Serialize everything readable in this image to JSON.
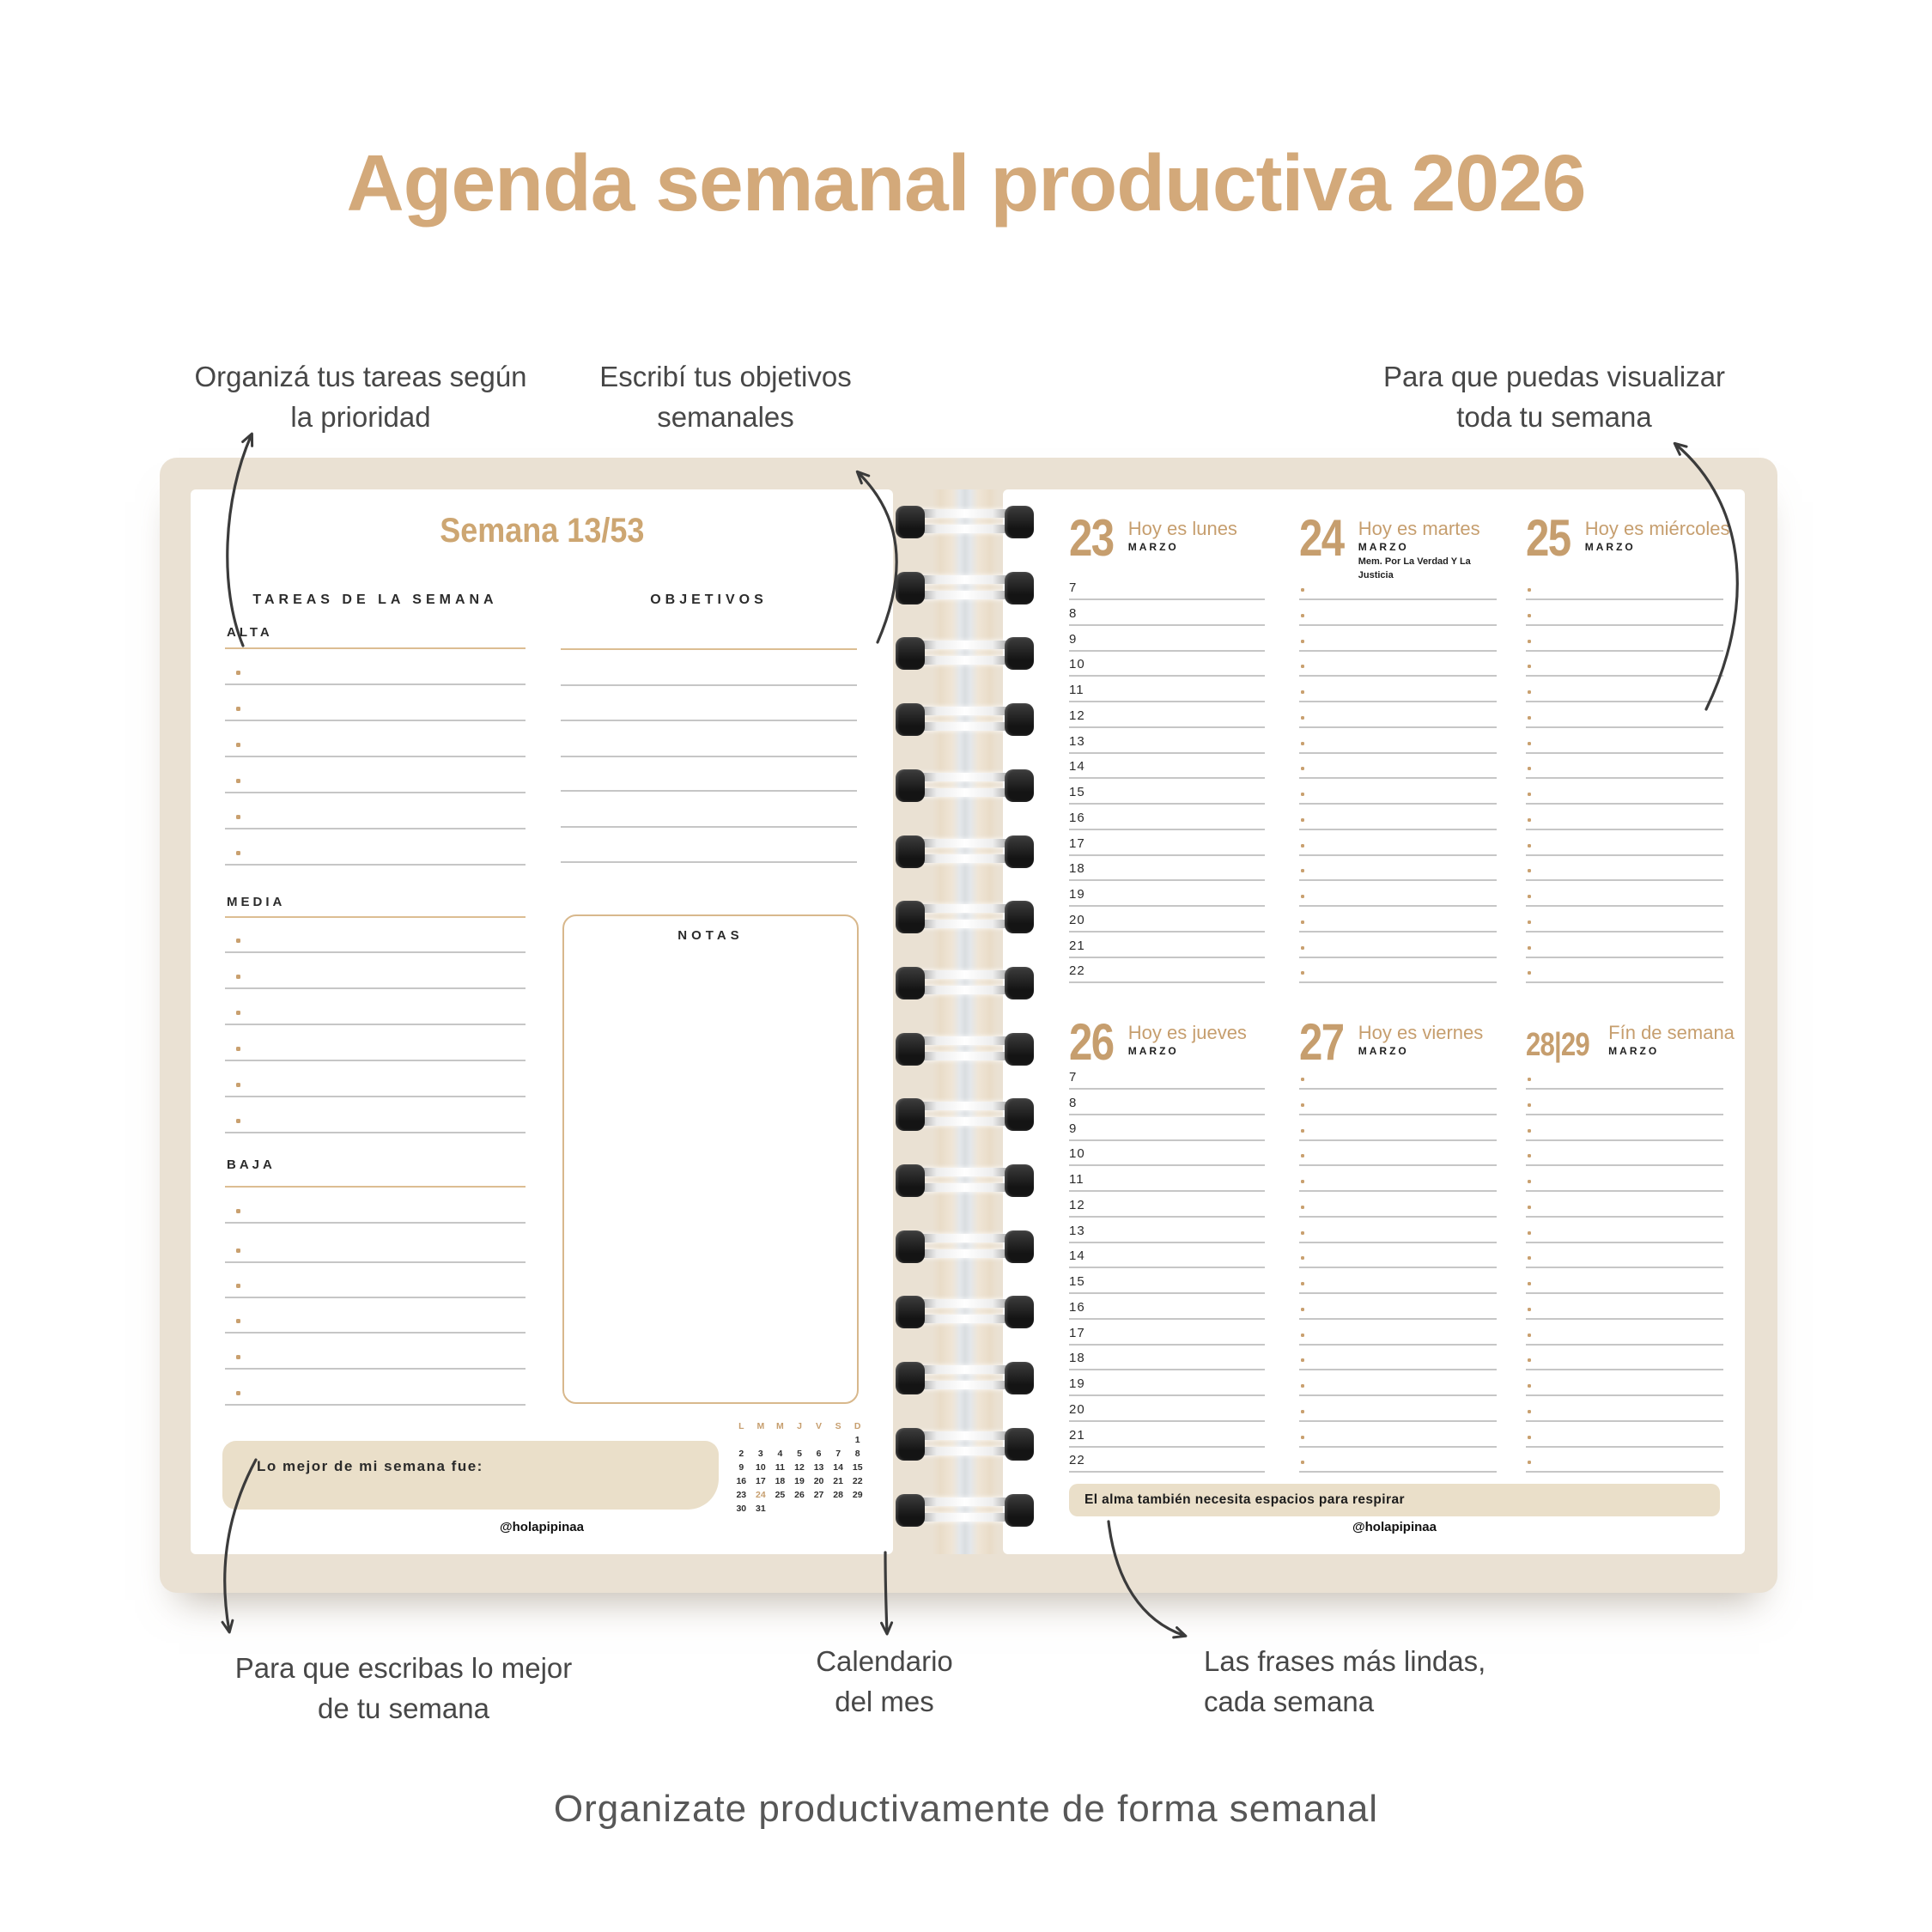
{
  "title": "Agenda semanal productiva 2026",
  "caption": "Organizate productivamente de forma semanal",
  "annotations": {
    "top_left": {
      "line1": "Organizá tus tareas según",
      "line2": "la prioridad"
    },
    "top_middle": {
      "line1": "Escribí tus objetivos",
      "line2": "semanales"
    },
    "top_right": {
      "line1": "Para que puedas visualizar",
      "line2": "toda tu semana"
    },
    "bottom_left": {
      "line1": "Para que escribas lo mejor",
      "line2": "de tu semana"
    },
    "bottom_middle": {
      "line1": "Calendario",
      "line2": "del mes"
    },
    "bottom_right": {
      "line1": "Las frases más lindas,",
      "line2": "cada semana"
    }
  },
  "left_page": {
    "week_title": "Semana 13/53",
    "tasks_header": "TAREAS DE LA SEMANA",
    "objectives_header": "OBJETIVOS",
    "priority_sections": [
      {
        "name": "ALTA",
        "lines": 6
      },
      {
        "name": "MEDIA",
        "lines": 6
      },
      {
        "name": "BAJA",
        "lines": 6
      }
    ],
    "objectives_lines": 6,
    "notes_label": "NOTAS",
    "best_of_week_label": "Lo mejor de mi semana fue:",
    "handle": "@holapipinaa",
    "mini_calendar": {
      "day_headers": [
        "L",
        "M",
        "M",
        "J",
        "V",
        "S",
        "D"
      ],
      "weeks": [
        [
          "",
          "",
          "",
          "",
          "",
          "",
          "1"
        ],
        [
          "2",
          "3",
          "4",
          "5",
          "6",
          "7",
          "8"
        ],
        [
          "9",
          "10",
          "11",
          "12",
          "13",
          "14",
          "15"
        ],
        [
          "16",
          "17",
          "18",
          "19",
          "20",
          "21",
          "22"
        ],
        [
          "23",
          "24",
          "25",
          "26",
          "27",
          "28",
          "29"
        ],
        [
          "30",
          "31",
          "",
          "",
          "",
          "",
          ""
        ]
      ],
      "highlighted_day": "24"
    }
  },
  "right_page": {
    "hours": [
      "7",
      "8",
      "9",
      "10",
      "11",
      "12",
      "13",
      "14",
      "15",
      "16",
      "17",
      "18",
      "19",
      "20",
      "21",
      "22"
    ],
    "days": [
      {
        "number": "23",
        "label": "Hoy es lunes",
        "month": "MARZO",
        "note": "",
        "col": 0,
        "section": 0,
        "show_hours": true,
        "small_number": false
      },
      {
        "number": "24",
        "label": "Hoy es martes",
        "month": "MARZO",
        "note": "Mem.  Por La Verdad Y La Justicia",
        "col": 1,
        "section": 0,
        "show_hours": false,
        "small_number": false
      },
      {
        "number": "25",
        "label": "Hoy es miércoles",
        "month": "MARZO",
        "note": "",
        "col": 2,
        "section": 0,
        "show_hours": false,
        "small_number": false
      },
      {
        "number": "26",
        "label": "Hoy es jueves",
        "month": "MARZO",
        "note": "",
        "col": 0,
        "section": 1,
        "show_hours": true,
        "small_number": false
      },
      {
        "number": "27",
        "label": "Hoy es viernes",
        "month": "MARZO",
        "note": "",
        "col": 1,
        "section": 1,
        "show_hours": false,
        "small_number": false
      },
      {
        "number": "28|29",
        "label": "Fín de semana",
        "month": "MARZO",
        "note": "",
        "col": 2,
        "section": 1,
        "show_hours": false,
        "small_number": true
      }
    ],
    "quote_banner": "El alma también necesita espacios para respirar",
    "handle": "@holapipinaa"
  },
  "colors": {
    "accent_tan": "#c69e6e",
    "title_tan": "#d3a97a",
    "notebook_beige": "#eae1d3",
    "highlight_beige": "#eadfc9",
    "line_gray": "#c6c6c6",
    "text_dark": "#1f1f1f",
    "annotation_gray": "#474747"
  }
}
